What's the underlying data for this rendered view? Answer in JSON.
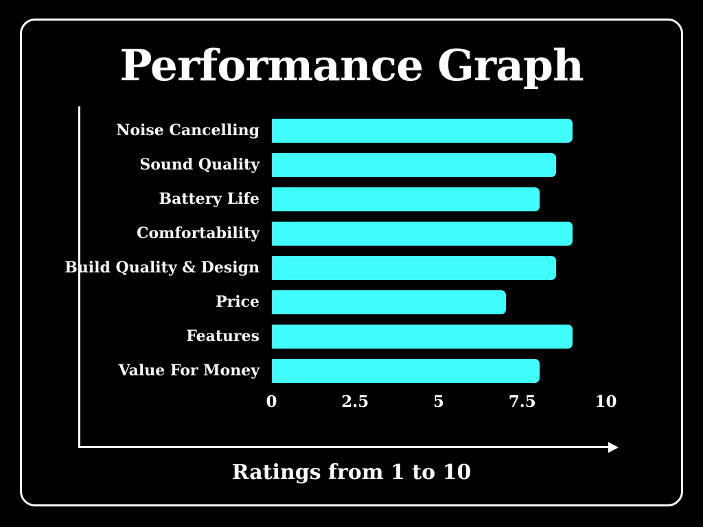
{
  "page": {
    "title": "Performance Graph",
    "caption": "Ratings from 1 to 10"
  },
  "colors": {
    "background": "#000000",
    "frame_border": "#ffffff",
    "bar": "#40fcfc",
    "axis": "#ffffff",
    "text": "#ffffff"
  },
  "chart_data": {
    "type": "bar",
    "orientation": "horizontal",
    "title": "Performance Graph",
    "xlabel": "Ratings from 1 to 10",
    "ylabel": "",
    "categories": [
      "Noise Cancelling",
      "Sound Quality",
      "Battery Life",
      "Comfortability",
      "Build Quality & Design",
      "Price",
      "Features",
      "Value For Money"
    ],
    "values": [
      9,
      8.5,
      8,
      9,
      8.5,
      7,
      9,
      8
    ],
    "x_ticks": [
      "0",
      "2.5",
      "5",
      "7.5",
      "10"
    ],
    "x_tick_values": [
      0,
      2.5,
      5,
      7.5,
      10
    ],
    "xlim": [
      0,
      10
    ],
    "grid": false,
    "legend": false
  }
}
